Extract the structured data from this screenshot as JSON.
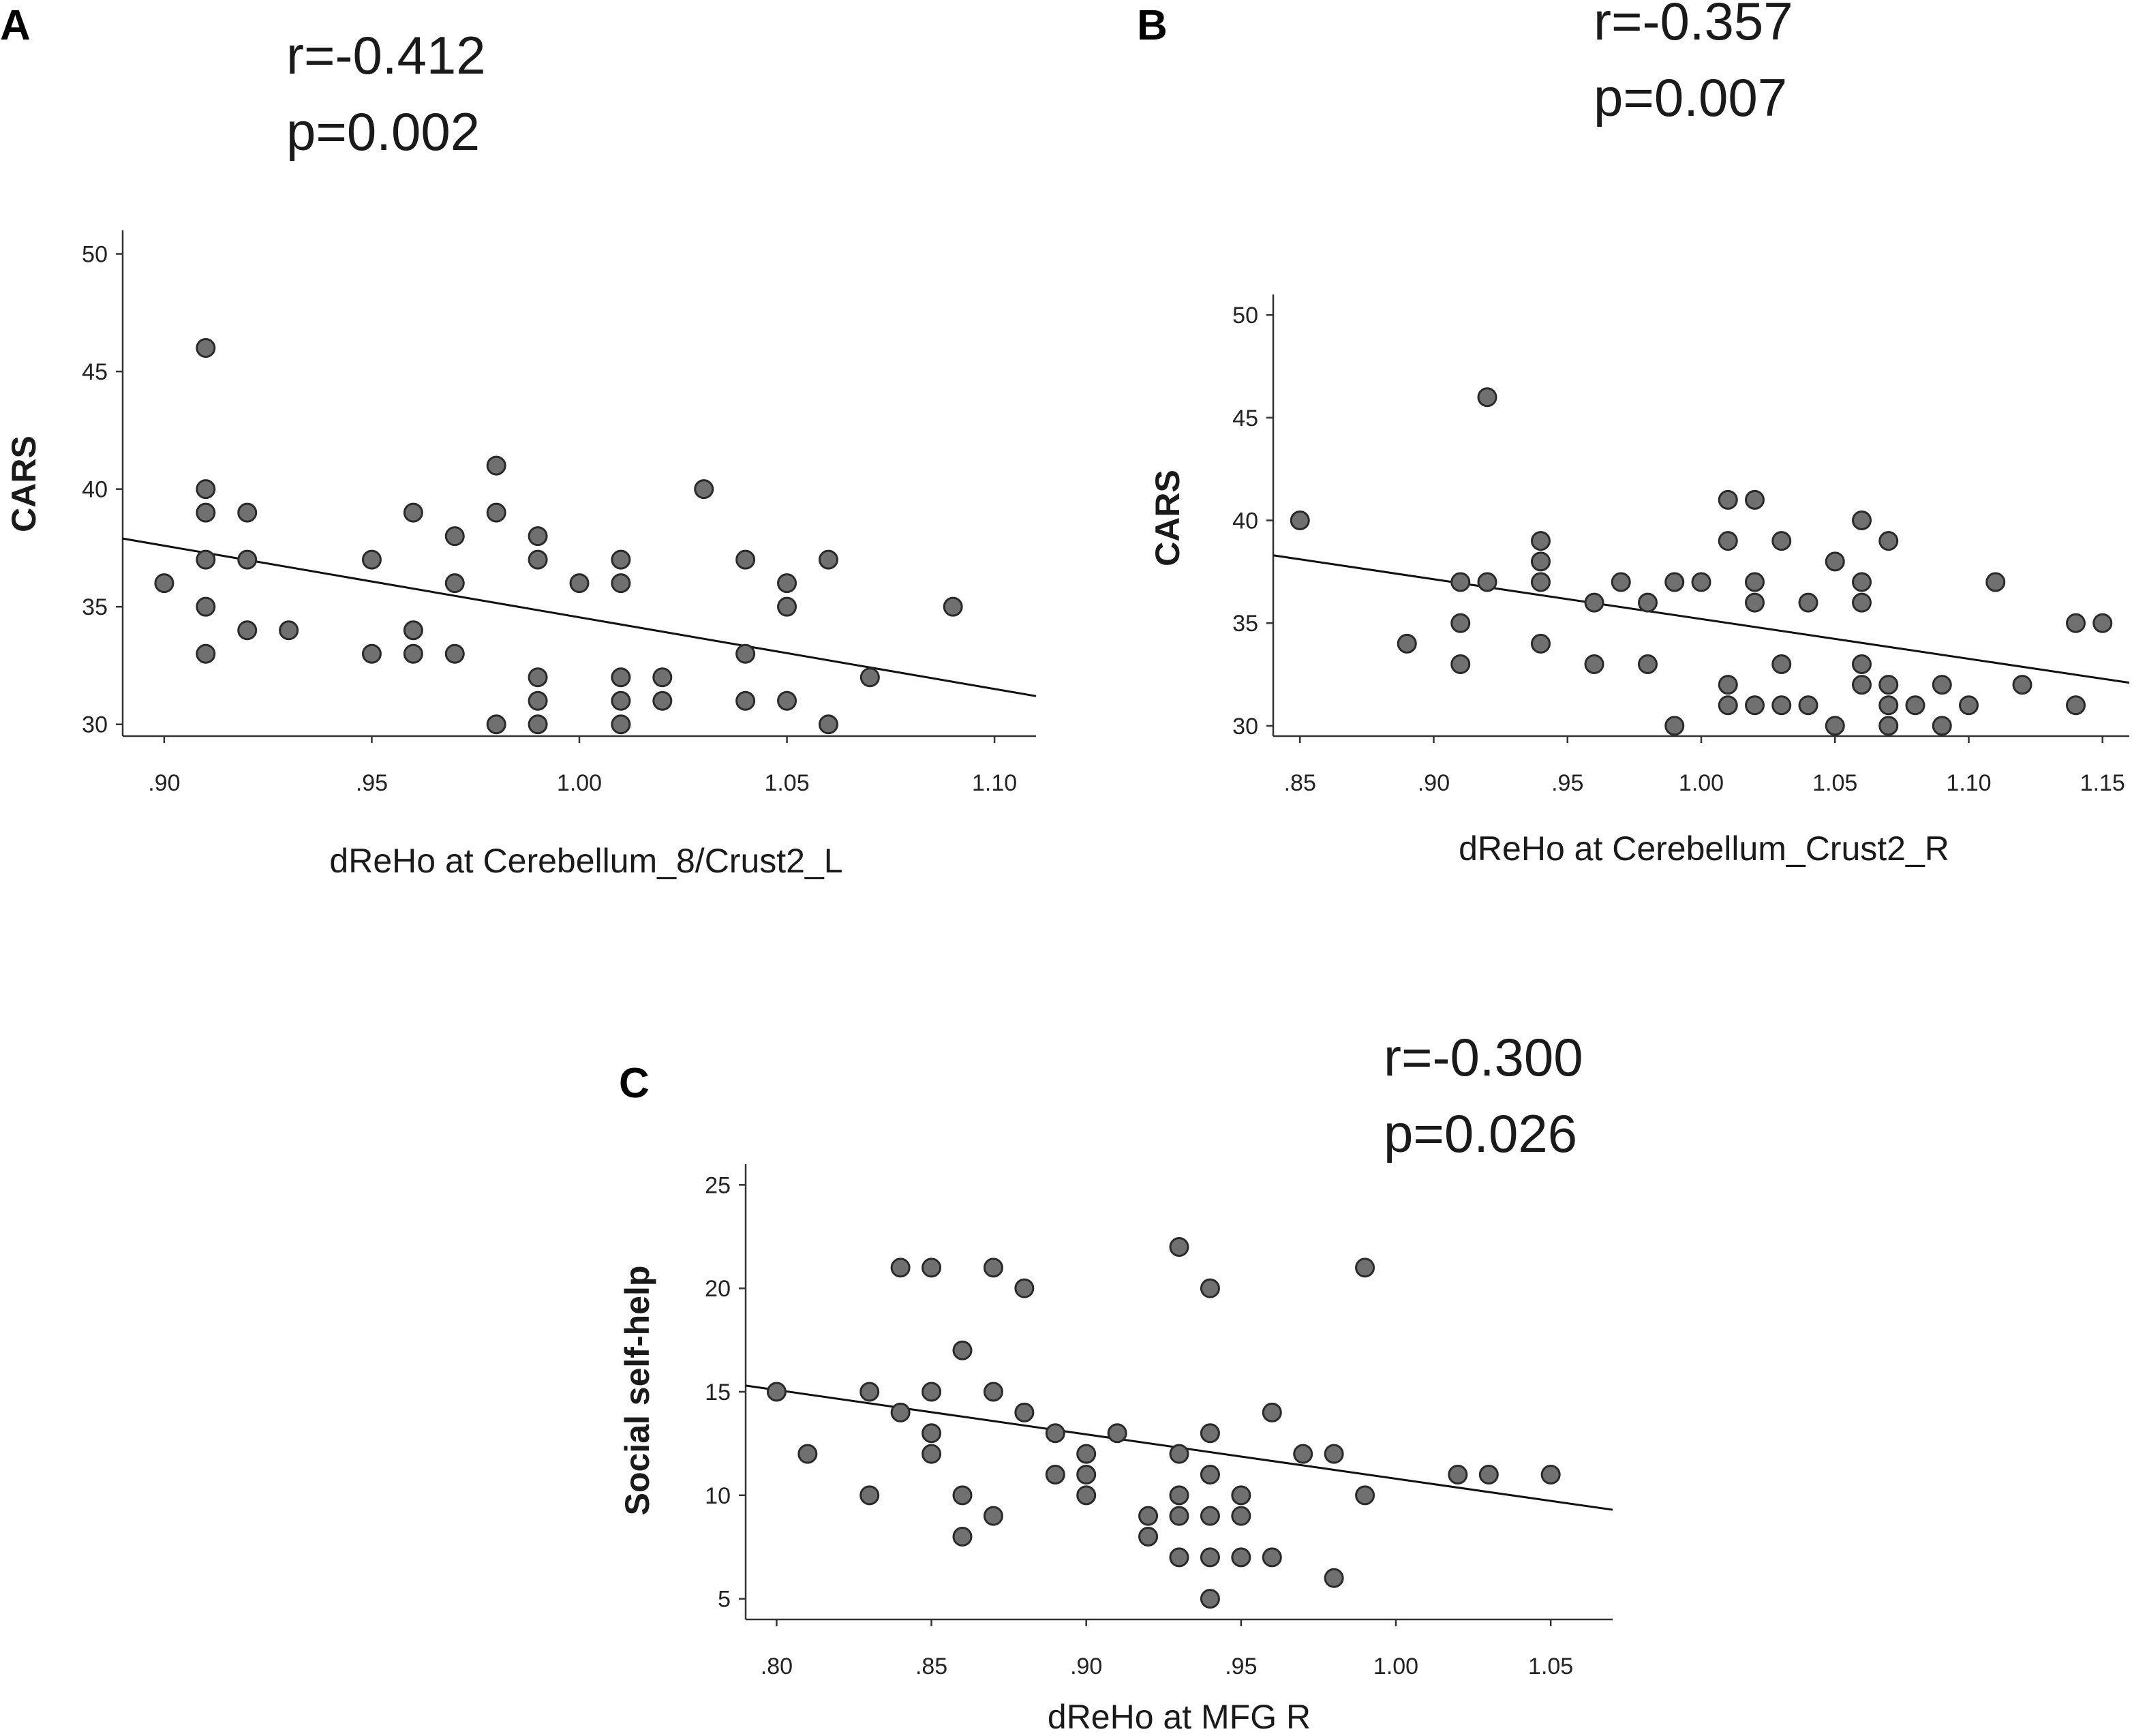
{
  "chart_data": [
    {
      "type": "scatter",
      "panel": "A",
      "stats": [
        "r=-0.412",
        "p=0.002"
      ],
      "xlabel": "dReHo at Cerebellum_8/Crust2_L",
      "ylabel": "CARS",
      "xlim": [
        0.89,
        1.11
      ],
      "ylim": [
        29.5,
        51
      ],
      "xticks": [
        0.9,
        0.95,
        1.0,
        1.05,
        1.1
      ],
      "xtick_labels": [
        ".90",
        ".95",
        "1.00",
        "1.05",
        "1.10"
      ],
      "yticks": [
        30,
        35,
        40,
        45,
        50
      ],
      "ytick_labels": [
        "30",
        "35",
        "40",
        "45",
        "50"
      ],
      "fit_line": [
        [
          0.89,
          37.9
        ],
        [
          1.11,
          31.2
        ]
      ],
      "points": [
        [
          0.9,
          36
        ],
        [
          0.91,
          46
        ],
        [
          0.91,
          40
        ],
        [
          0.91,
          39
        ],
        [
          0.91,
          37
        ],
        [
          0.91,
          35
        ],
        [
          0.91,
          33
        ],
        [
          0.92,
          39
        ],
        [
          0.92,
          37
        ],
        [
          0.92,
          34
        ],
        [
          0.93,
          34
        ],
        [
          0.95,
          37
        ],
        [
          0.95,
          33
        ],
        [
          0.96,
          39
        ],
        [
          0.96,
          34
        ],
        [
          0.96,
          33
        ],
        [
          0.97,
          38
        ],
        [
          0.97,
          36
        ],
        [
          0.97,
          33
        ],
        [
          0.98,
          41
        ],
        [
          0.98,
          39
        ],
        [
          0.98,
          30
        ],
        [
          0.99,
          38
        ],
        [
          0.99,
          37
        ],
        [
          0.99,
          32
        ],
        [
          0.99,
          31
        ],
        [
          0.99,
          30
        ],
        [
          1.0,
          36
        ],
        [
          1.01,
          37
        ],
        [
          1.01,
          36
        ],
        [
          1.01,
          32
        ],
        [
          1.01,
          31
        ],
        [
          1.01,
          30
        ],
        [
          1.02,
          32
        ],
        [
          1.02,
          31
        ],
        [
          1.03,
          40
        ],
        [
          1.04,
          37
        ],
        [
          1.04,
          33
        ],
        [
          1.04,
          31
        ],
        [
          1.05,
          36
        ],
        [
          1.05,
          35
        ],
        [
          1.05,
          31
        ],
        [
          1.06,
          37
        ],
        [
          1.06,
          30
        ],
        [
          1.07,
          32
        ],
        [
          1.09,
          35
        ]
      ]
    },
    {
      "type": "scatter",
      "panel": "B",
      "stats": [
        "r=-0.357",
        "p=0.007"
      ],
      "xlabel": "dReHo at Cerebellum_Crust2_R",
      "ylabel": "CARS",
      "xlim": [
        0.84,
        1.16
      ],
      "ylim": [
        29.5,
        51
      ],
      "xticks": [
        0.85,
        0.9,
        0.95,
        1.0,
        1.05,
        1.1,
        1.15
      ],
      "xtick_labels": [
        ".85",
        ".90",
        ".95",
        "1.00",
        "1.05",
        "1.10",
        "1.15"
      ],
      "yticks": [
        30,
        35,
        40,
        45,
        50
      ],
      "ytick_labels": [
        "30",
        "35",
        "40",
        "45",
        "50"
      ],
      "fit_line": [
        [
          0.84,
          38.3
        ],
        [
          1.16,
          32.1
        ]
      ],
      "points": [
        [
          0.85,
          40
        ],
        [
          0.89,
          34
        ],
        [
          0.91,
          37
        ],
        [
          0.91,
          35
        ],
        [
          0.91,
          33
        ],
        [
          0.92,
          46
        ],
        [
          0.92,
          37
        ],
        [
          0.94,
          39
        ],
        [
          0.94,
          38
        ],
        [
          0.94,
          37
        ],
        [
          0.94,
          34
        ],
        [
          0.96,
          36
        ],
        [
          0.96,
          33
        ],
        [
          0.97,
          37
        ],
        [
          0.98,
          36
        ],
        [
          0.98,
          33
        ],
        [
          0.99,
          37
        ],
        [
          0.99,
          30
        ],
        [
          1.0,
          37
        ],
        [
          1.01,
          41
        ],
        [
          1.01,
          39
        ],
        [
          1.01,
          32
        ],
        [
          1.01,
          31
        ],
        [
          1.02,
          41
        ],
        [
          1.02,
          37
        ],
        [
          1.02,
          36
        ],
        [
          1.02,
          31
        ],
        [
          1.03,
          39
        ],
        [
          1.03,
          33
        ],
        [
          1.03,
          31
        ],
        [
          1.04,
          36
        ],
        [
          1.04,
          31
        ],
        [
          1.05,
          38
        ],
        [
          1.05,
          30
        ],
        [
          1.06,
          40
        ],
        [
          1.06,
          37
        ],
        [
          1.06,
          36
        ],
        [
          1.06,
          33
        ],
        [
          1.06,
          32
        ],
        [
          1.07,
          39
        ],
        [
          1.07,
          32
        ],
        [
          1.07,
          31
        ],
        [
          1.07,
          30
        ],
        [
          1.08,
          31
        ],
        [
          1.09,
          32
        ],
        [
          1.09,
          30
        ],
        [
          1.1,
          31
        ],
        [
          1.11,
          37
        ],
        [
          1.12,
          32
        ],
        [
          1.14,
          35
        ],
        [
          1.14,
          31
        ],
        [
          1.15,
          35
        ]
      ]
    },
    {
      "type": "scatter",
      "panel": "C",
      "stats": [
        "r=-0.300",
        "p=0.026"
      ],
      "xlabel": "dReHo at MFG R",
      "ylabel": "Social self-help",
      "xlim": [
        0.79,
        1.07
      ],
      "ylim": [
        4,
        26
      ],
      "xticks": [
        0.8,
        0.85,
        0.9,
        0.95,
        1.0,
        1.05
      ],
      "xtick_labels": [
        ".80",
        ".85",
        ".90",
        ".95",
        "1.00",
        "1.05"
      ],
      "yticks": [
        5,
        10,
        15,
        20,
        25
      ],
      "ytick_labels": [
        "5",
        "10",
        "15",
        "20",
        "25"
      ],
      "fit_line": [
        [
          0.79,
          15.3
        ],
        [
          1.07,
          9.3
        ]
      ],
      "points": [
        [
          0.8,
          15
        ],
        [
          0.81,
          12
        ],
        [
          0.83,
          15
        ],
        [
          0.83,
          10
        ],
        [
          0.84,
          21
        ],
        [
          0.84,
          14
        ],
        [
          0.85,
          21
        ],
        [
          0.85,
          15
        ],
        [
          0.85,
          13
        ],
        [
          0.85,
          12
        ],
        [
          0.86,
          17
        ],
        [
          0.86,
          10
        ],
        [
          0.86,
          8
        ],
        [
          0.87,
          21
        ],
        [
          0.87,
          15
        ],
        [
          0.87,
          9
        ],
        [
          0.88,
          20
        ],
        [
          0.88,
          14
        ],
        [
          0.89,
          13
        ],
        [
          0.89,
          11
        ],
        [
          0.9,
          12
        ],
        [
          0.9,
          11
        ],
        [
          0.9,
          10
        ],
        [
          0.91,
          13
        ],
        [
          0.92,
          9
        ],
        [
          0.92,
          8
        ],
        [
          0.93,
          22
        ],
        [
          0.93,
          12
        ],
        [
          0.93,
          10
        ],
        [
          0.93,
          9
        ],
        [
          0.93,
          7
        ],
        [
          0.94,
          20
        ],
        [
          0.94,
          13
        ],
        [
          0.94,
          11
        ],
        [
          0.94,
          9
        ],
        [
          0.94,
          7
        ],
        [
          0.94,
          5
        ],
        [
          0.95,
          10
        ],
        [
          0.95,
          9
        ],
        [
          0.95,
          7
        ],
        [
          0.96,
          14
        ],
        [
          0.96,
          7
        ],
        [
          0.97,
          12
        ],
        [
          0.98,
          12
        ],
        [
          0.98,
          6
        ],
        [
          0.99,
          21
        ],
        [
          0.99,
          10
        ],
        [
          1.02,
          11
        ],
        [
          1.03,
          11
        ],
        [
          1.05,
          11
        ]
      ]
    }
  ]
}
